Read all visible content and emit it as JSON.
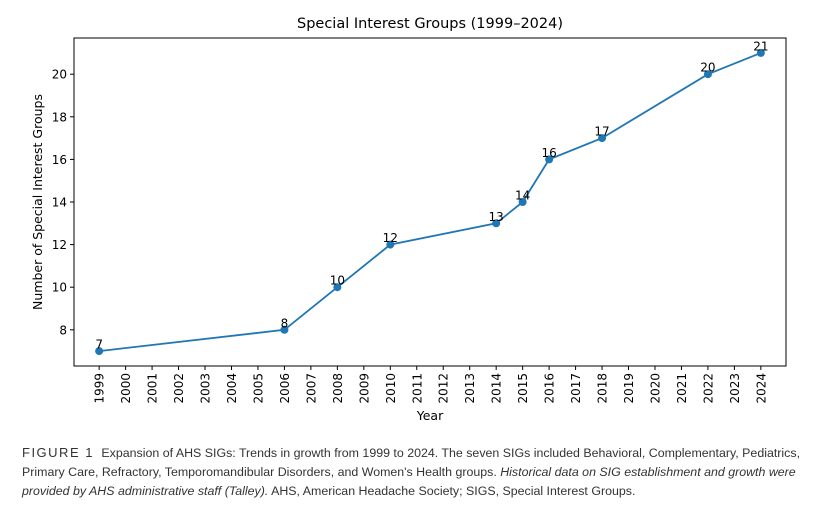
{
  "chart_data": {
    "type": "line",
    "title": "Special Interest Groups (1999–2024)",
    "xlabel": "Year",
    "ylabel": "Number of Special Interest Groups",
    "x": [
      1999,
      2006,
      2008,
      2010,
      2014,
      2015,
      2016,
      2018,
      2022,
      2024
    ],
    "values": [
      7,
      8,
      10,
      12,
      13,
      14,
      16,
      17,
      20,
      21
    ],
    "data_labels": [
      "7",
      "8",
      "10",
      "12",
      "13",
      "14",
      "16",
      "17",
      "20",
      "21"
    ],
    "x_ticks": [
      "1999",
      "2000",
      "2001",
      "2002",
      "2003",
      "2004",
      "2005",
      "2006",
      "2007",
      "2008",
      "2009",
      "2010",
      "2011",
      "2012",
      "2013",
      "2014",
      "2015",
      "2016",
      "2017",
      "2018",
      "2019",
      "2020",
      "2021",
      "2022",
      "2023",
      "2024"
    ],
    "y_ticks": [
      "8",
      "10",
      "12",
      "14",
      "16",
      "18",
      "20"
    ],
    "xlim": [
      1998.05,
      2024.95
    ],
    "ylim": [
      6.3,
      21.7
    ],
    "grid": false,
    "line_color": "#1f77b4"
  },
  "caption": {
    "label": "FIGURE 1",
    "text": "Expansion of AHS SIGs: Trends in growth from 1999 to 2024. The seven SIGs included Behavioral, Complementary, Pediatrics, Primary Care, Refractory, Temporomandibular Disorders, and Women's Health groups.",
    "italic_text": "Historical data on SIG establishment and growth were provided by AHS administrative staff (Talley).",
    "trailing_text": "AHS, American Headache Society; SIGS, Special Interest Groups."
  }
}
